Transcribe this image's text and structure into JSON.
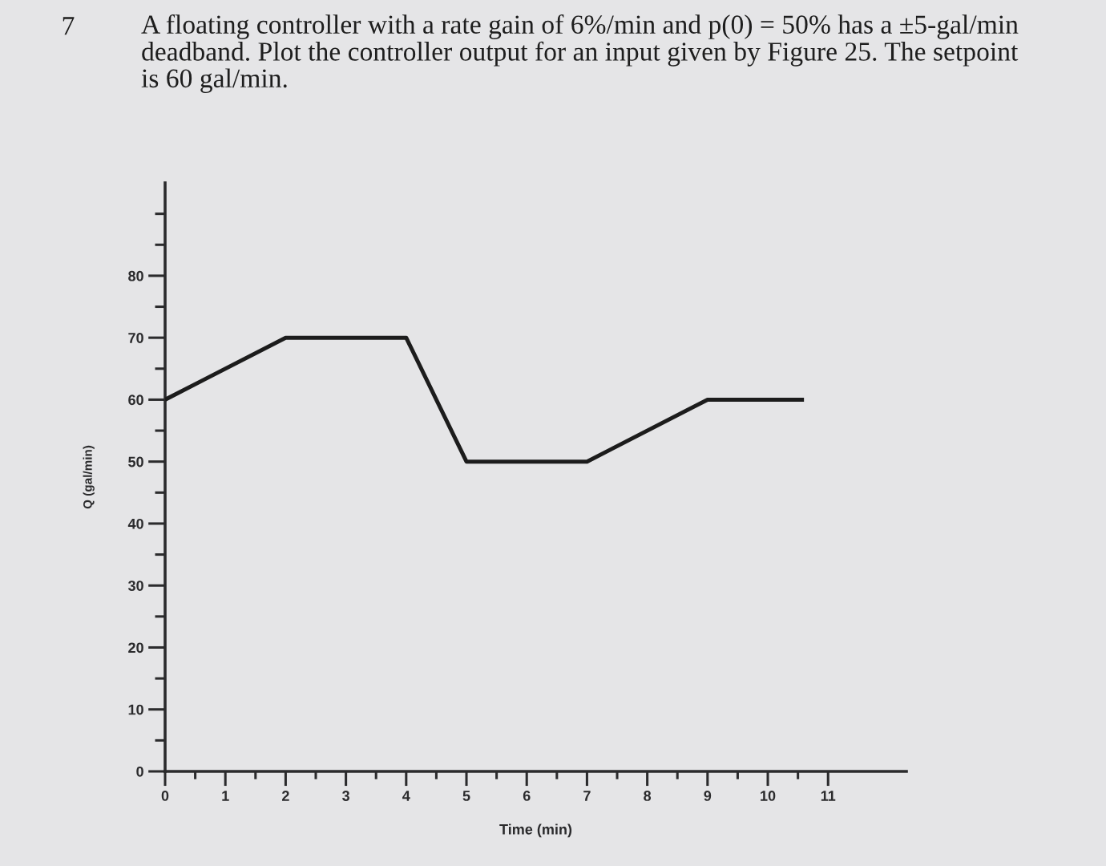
{
  "chart_data": {
    "type": "line",
    "title": "A floating controller with a rate gain of 6%/min and p(0) = 50% has a ±5-gal/min deadband. Plot the controller output for an input given by Figure 25. The setpoint is 60 gal/min.",
    "annotations": [
      "7"
    ],
    "xlabel": "Time (min)",
    "ylabel": "Q (gal/min)",
    "x": [
      0,
      2,
      4,
      5,
      7,
      9,
      10.6
    ],
    "series": [
      {
        "color": "#1c1c1c",
        "values": [
          60,
          70,
          70,
          50,
          50,
          60,
          60
        ]
      }
    ],
    "line_style": "solid",
    "xlim": [
      0,
      12.3
    ],
    "ylim": [
      0,
      95
    ],
    "xticks": [
      0,
      {
        "value": 0.5,
        "label": null
      },
      1,
      {
        "value": 1.5,
        "label": null
      },
      2,
      {
        "value": 2.5,
        "label": null
      },
      3,
      {
        "value": 3.5,
        "label": null
      },
      4,
      {
        "value": 4.5,
        "label": null
      },
      5,
      {
        "value": 5.5,
        "label": null
      },
      6,
      {
        "value": 6.5,
        "label": null
      },
      7,
      {
        "value": 7.5,
        "label": null
      },
      8,
      {
        "value": 8.5,
        "label": null
      },
      9,
      {
        "value": 9.5,
        "label": null
      },
      10,
      {
        "value": 10.5,
        "label": null
      },
      11
    ],
    "yticks": [
      0,
      {
        "value": 5,
        "label": null
      },
      10,
      {
        "value": 15,
        "label": null
      },
      20,
      {
        "value": 25,
        "label": null
      },
      30,
      {
        "value": 35,
        "label": null
      },
      40,
      {
        "value": 45,
        "label": null
      },
      50,
      {
        "value": 55,
        "label": null
      },
      60,
      {
        "value": 65,
        "label": null
      },
      70,
      {
        "value": 75,
        "label": null
      },
      80,
      {
        "value": 85,
        "label": null
      },
      {
        "value": 90,
        "label": null
      }
    ]
  }
}
